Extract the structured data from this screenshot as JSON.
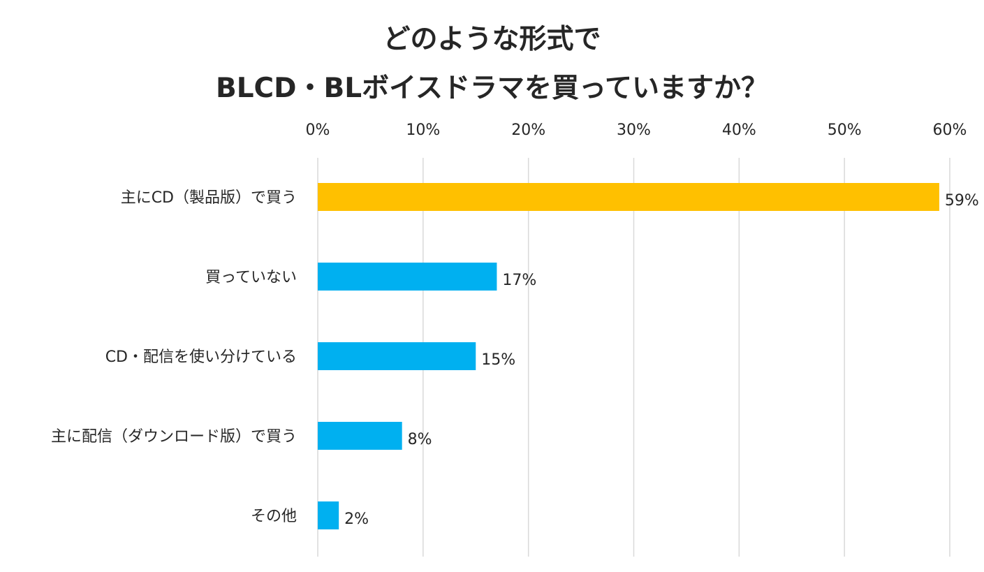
{
  "chart_data": {
    "type": "bar",
    "orientation": "horizontal",
    "title_lines": [
      "どのような形式で",
      "BLCD・BLボイスドラマを買っていますか？"
    ],
    "categories": [
      "主にCD（製品版）で買う",
      "買っていない",
      "CD・配信を使い分けている",
      "主に配信（ダウンロード版）で買う",
      "その他"
    ],
    "values": [
      59,
      17,
      15,
      8,
      2
    ],
    "value_labels": [
      "59%",
      "17%",
      "15%",
      "8%",
      "2%"
    ],
    "bar_colors": [
      "#FFC000",
      "#00B0F0",
      "#00B0F0",
      "#00B0F0",
      "#00B0F0"
    ],
    "xlim": [
      0,
      60
    ],
    "x_ticks": [
      0,
      10,
      20,
      30,
      40,
      50,
      60
    ],
    "x_tick_labels": [
      "0%",
      "10%",
      "20%",
      "30%",
      "40%",
      "50%",
      "60%"
    ],
    "x_axis_position": "top",
    "grid": true,
    "grid_color": "#D9D9D9",
    "text_color": "#262626",
    "xlabel": "",
    "ylabel": ""
  }
}
